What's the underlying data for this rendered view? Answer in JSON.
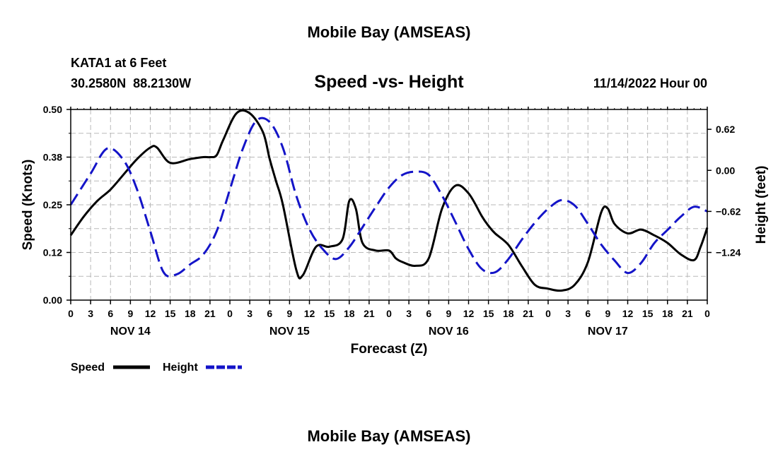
{
  "chart_data": {
    "type": "line",
    "title": "Mobile Bay (AMSEAS)",
    "footer_title": "Mobile Bay (AMSEAS)",
    "subtitle": "Speed -vs- Height",
    "station": "KATA1 at 6 Feet",
    "location": "30.2580N  88.2130W",
    "date_label": "11/14/2022 Hour 00",
    "xlabel": "Forecast (Z)",
    "ylabel_left": "Speed (Knots)",
    "ylabel_right": "Height (feet)",
    "x_range_hours": [
      0,
      96
    ],
    "x_tick_step_hours": 3,
    "x_ticks": [
      "0",
      "3",
      "6",
      "9",
      "12",
      "15",
      "18",
      "21",
      "0",
      "3",
      "6",
      "9",
      "12",
      "15",
      "18",
      "21",
      "0",
      "3",
      "6",
      "9",
      "12",
      "15",
      "18",
      "21",
      "0",
      "3",
      "6",
      "9",
      "12",
      "15",
      "18",
      "21",
      "0"
    ],
    "day_labels": [
      {
        "label": "NOV 14",
        "hour": 9
      },
      {
        "label": "NOV 15",
        "hour": 33
      },
      {
        "label": "NOV 16",
        "hour": 57
      },
      {
        "label": "NOV 17",
        "hour": 81
      }
    ],
    "y_left": {
      "range": [
        0,
        0.5
      ],
      "ticks": [
        "0.00",
        "0.12",
        "0.25",
        "0.38",
        "0.50"
      ],
      "tick_values": [
        0,
        0.125,
        0.25,
        0.375,
        0.5
      ]
    },
    "y_right": {
      "range": [
        -1.96,
        0.92
      ],
      "ticks": [
        "0.62",
        "0.00",
        "−0.62",
        "−1.24"
      ],
      "tick_values": [
        0.62,
        0,
        -0.62,
        -1.24
      ]
    },
    "series": [
      {
        "name": "Speed",
        "axis": "left",
        "color": "#000000",
        "x": [
          0,
          2,
          4,
          6,
          8,
          10,
          12,
          13,
          15,
          18,
          20,
          21,
          22,
          23,
          25,
          27,
          29,
          30,
          31,
          32,
          34,
          35,
          37,
          39,
          41,
          42,
          43,
          44,
          46,
          48,
          49,
          50,
          52,
          54,
          56,
          58,
          60,
          62,
          63,
          64,
          66,
          68,
          70,
          72,
          74,
          76,
          78,
          80,
          81,
          82,
          84,
          86,
          88,
          90,
          92,
          94,
          95,
          96
        ],
        "y": [
          0.17,
          0.22,
          0.26,
          0.29,
          0.33,
          0.37,
          0.4,
          0.4,
          0.36,
          0.37,
          0.375,
          0.375,
          0.38,
          0.42,
          0.49,
          0.49,
          0.44,
          0.37,
          0.31,
          0.25,
          0.08,
          0.065,
          0.14,
          0.14,
          0.16,
          0.26,
          0.24,
          0.15,
          0.13,
          0.13,
          0.11,
          0.1,
          0.09,
          0.11,
          0.24,
          0.3,
          0.28,
          0.22,
          0.195,
          0.175,
          0.145,
          0.09,
          0.04,
          0.03,
          0.025,
          0.04,
          0.1,
          0.23,
          0.24,
          0.2,
          0.175,
          0.185,
          0.17,
          0.15,
          0.12,
          0.105,
          0.14,
          0.19
        ]
      },
      {
        "name": "Height",
        "axis": "right",
        "color": "#1414c8",
        "x": [
          0,
          3,
          5.5,
          8,
          10,
          12,
          14,
          16,
          18,
          20,
          22,
          24,
          26,
          28,
          30,
          32,
          34,
          36,
          38,
          40,
          42,
          44,
          46,
          48,
          50,
          52,
          54,
          56,
          58,
          60,
          62,
          64,
          66,
          68,
          70,
          72,
          74,
          76,
          78,
          80,
          82,
          84,
          86,
          88,
          90,
          92,
          94,
          96
        ],
        "y": [
          -0.52,
          -0.05,
          0.33,
          0.15,
          -0.29,
          -0.92,
          -1.54,
          -1.57,
          -1.42,
          -1.27,
          -0.92,
          -0.29,
          0.34,
          0.75,
          0.73,
          0.34,
          -0.38,
          -0.89,
          -1.19,
          -1.34,
          -1.16,
          -0.86,
          -0.55,
          -0.26,
          -0.07,
          -0.02,
          -0.07,
          -0.38,
          -0.78,
          -1.19,
          -1.49,
          -1.54,
          -1.34,
          -1.05,
          -0.79,
          -0.58,
          -0.45,
          -0.53,
          -0.81,
          -1.12,
          -1.36,
          -1.55,
          -1.4,
          -1.1,
          -0.9,
          -0.7,
          -0.55,
          -0.62
        ]
      }
    ],
    "legend": [
      {
        "label": "Speed",
        "color": "#000000",
        "style": "solid"
      },
      {
        "label": "Height",
        "color": "#1414c8",
        "style": "dashed"
      }
    ]
  }
}
